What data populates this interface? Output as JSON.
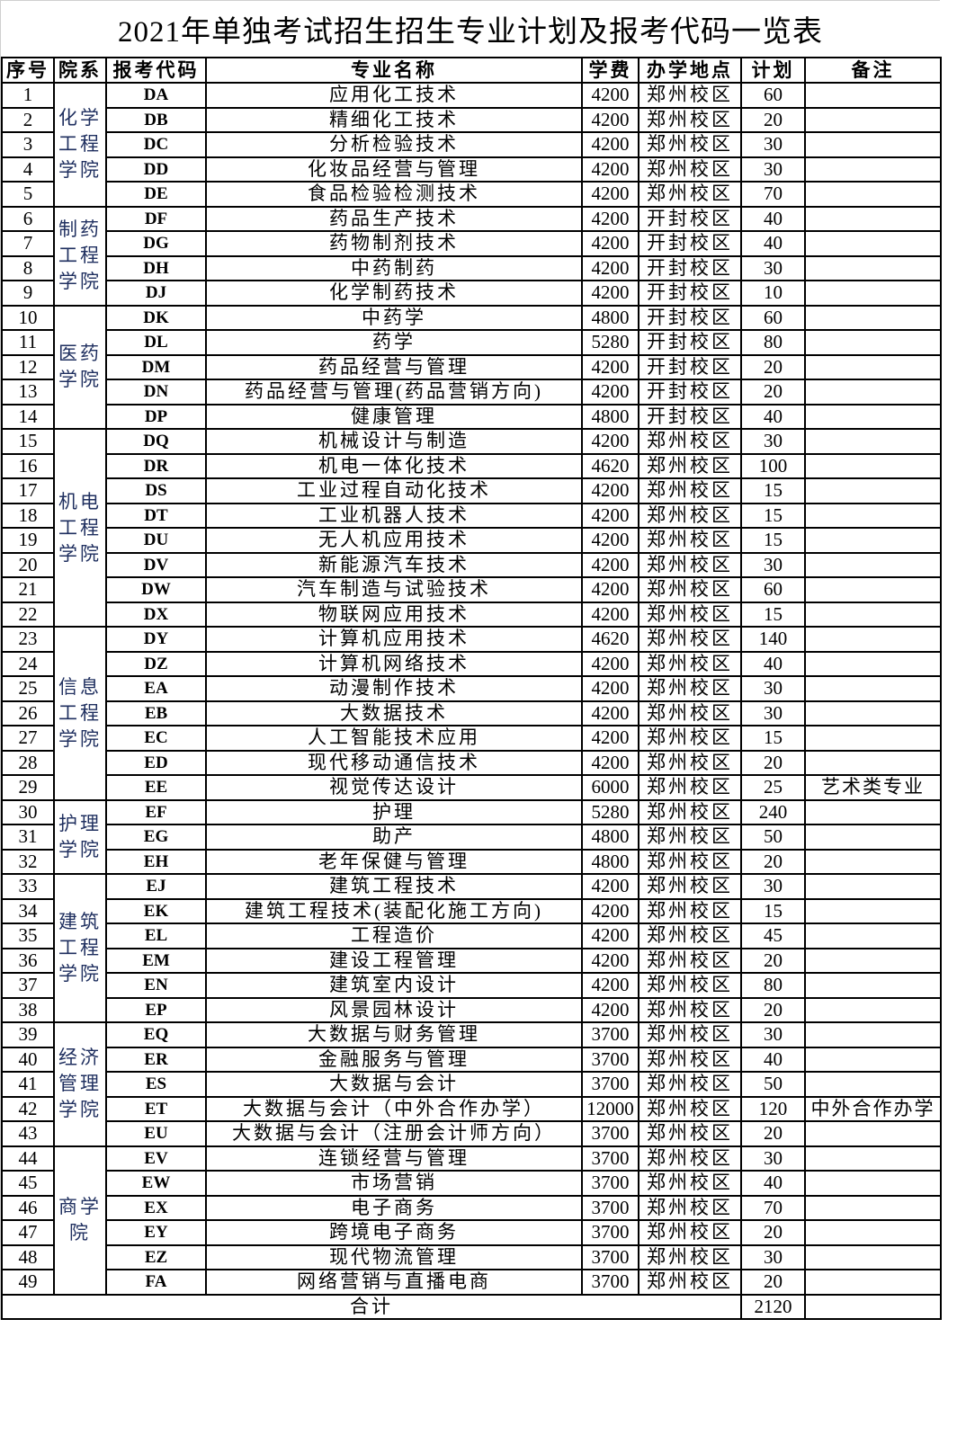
{
  "title": "2021年单独考试招生招生专业计划及报考代码一览表",
  "headers": [
    "序号",
    "院系",
    "报考代码",
    "专业名称",
    "学费",
    "办学地点",
    "计划",
    "备注"
  ],
  "departments": [
    {
      "name": "化学工程学院",
      "rows": 5
    },
    {
      "name": "制药工程学院",
      "rows": 4
    },
    {
      "name": "医药学院",
      "rows": 5
    },
    {
      "name": "机电工程学院",
      "rows": 8
    },
    {
      "name": "信息工程学院",
      "rows": 7
    },
    {
      "name": "护理学院",
      "rows": 3
    },
    {
      "name": "建筑工程学院",
      "rows": 6
    },
    {
      "name": "经济管理学院",
      "rows": 5
    },
    {
      "name": "商学院",
      "rows": 6
    }
  ],
  "rows": [
    [
      "1",
      "DA",
      "应用化工技术",
      "4200",
      "郑州校区",
      "60",
      ""
    ],
    [
      "2",
      "DB",
      "精细化工技术",
      "4200",
      "郑州校区",
      "20",
      ""
    ],
    [
      "3",
      "DC",
      "分析检验技术",
      "4200",
      "郑州校区",
      "30",
      ""
    ],
    [
      "4",
      "DD",
      "化妆品经营与管理",
      "4200",
      "郑州校区",
      "30",
      ""
    ],
    [
      "5",
      "DE",
      "食品检验检测技术",
      "4200",
      "郑州校区",
      "70",
      ""
    ],
    [
      "6",
      "DF",
      "药品生产技术",
      "4200",
      "开封校区",
      "40",
      ""
    ],
    [
      "7",
      "DG",
      "药物制剂技术",
      "4200",
      "开封校区",
      "40",
      ""
    ],
    [
      "8",
      "DH",
      "中药制药",
      "4200",
      "开封校区",
      "30",
      ""
    ],
    [
      "9",
      "DJ",
      "化学制药技术",
      "4200",
      "开封校区",
      "10",
      ""
    ],
    [
      "10",
      "DK",
      "中药学",
      "4800",
      "开封校区",
      "60",
      ""
    ],
    [
      "11",
      "DL",
      "药学",
      "5280",
      "开封校区",
      "80",
      ""
    ],
    [
      "12",
      "DM",
      "药品经营与管理",
      "4200",
      "开封校区",
      "20",
      ""
    ],
    [
      "13",
      "DN",
      "药品经营与管理(药品营销方向)",
      "4200",
      "开封校区",
      "20",
      ""
    ],
    [
      "14",
      "DP",
      "健康管理",
      "4800",
      "开封校区",
      "40",
      ""
    ],
    [
      "15",
      "DQ",
      "机械设计与制造",
      "4200",
      "郑州校区",
      "30",
      ""
    ],
    [
      "16",
      "DR",
      "机电一体化技术",
      "4620",
      "郑州校区",
      "100",
      ""
    ],
    [
      "17",
      "DS",
      "工业过程自动化技术",
      "4200",
      "郑州校区",
      "15",
      ""
    ],
    [
      "18",
      "DT",
      "工业机器人技术",
      "4200",
      "郑州校区",
      "15",
      ""
    ],
    [
      "19",
      "DU",
      "无人机应用技术",
      "4200",
      "郑州校区",
      "15",
      ""
    ],
    [
      "20",
      "DV",
      "新能源汽车技术",
      "4200",
      "郑州校区",
      "30",
      ""
    ],
    [
      "21",
      "DW",
      "汽车制造与试验技术",
      "4200",
      "郑州校区",
      "60",
      ""
    ],
    [
      "22",
      "DX",
      "物联网应用技术",
      "4200",
      "郑州校区",
      "15",
      ""
    ],
    [
      "23",
      "DY",
      "计算机应用技术",
      "4620",
      "郑州校区",
      "140",
      ""
    ],
    [
      "24",
      "DZ",
      "计算机网络技术",
      "4200",
      "郑州校区",
      "40",
      ""
    ],
    [
      "25",
      "EA",
      "动漫制作技术",
      "4200",
      "郑州校区",
      "30",
      ""
    ],
    [
      "26",
      "EB",
      "大数据技术",
      "4200",
      "郑州校区",
      "30",
      ""
    ],
    [
      "27",
      "EC",
      "人工智能技术应用",
      "4200",
      "郑州校区",
      "15",
      ""
    ],
    [
      "28",
      "ED",
      "现代移动通信技术",
      "4200",
      "郑州校区",
      "20",
      ""
    ],
    [
      "29",
      "EE",
      "视觉传达设计",
      "6000",
      "郑州校区",
      "25",
      "艺术类专业"
    ],
    [
      "30",
      "EF",
      "护理",
      "5280",
      "郑州校区",
      "240",
      ""
    ],
    [
      "31",
      "EG",
      "助产",
      "4800",
      "郑州校区",
      "50",
      ""
    ],
    [
      "32",
      "EH",
      "老年保健与管理",
      "4800",
      "郑州校区",
      "20",
      ""
    ],
    [
      "33",
      "EJ",
      "建筑工程技术",
      "4200",
      "郑州校区",
      "30",
      ""
    ],
    [
      "34",
      "EK",
      "建筑工程技术(装配化施工方向)",
      "4200",
      "郑州校区",
      "15",
      ""
    ],
    [
      "35",
      "EL",
      "工程造价",
      "4200",
      "郑州校区",
      "45",
      ""
    ],
    [
      "36",
      "EM",
      "建设工程管理",
      "4200",
      "郑州校区",
      "20",
      ""
    ],
    [
      "37",
      "EN",
      "建筑室内设计",
      "4200",
      "郑州校区",
      "80",
      ""
    ],
    [
      "38",
      "EP",
      "风景园林设计",
      "4200",
      "郑州校区",
      "20",
      ""
    ],
    [
      "39",
      "EQ",
      "大数据与财务管理",
      "3700",
      "郑州校区",
      "30",
      ""
    ],
    [
      "40",
      "ER",
      "金融服务与管理",
      "3700",
      "郑州校区",
      "40",
      ""
    ],
    [
      "41",
      "ES",
      "大数据与会计",
      "3700",
      "郑州校区",
      "50",
      ""
    ],
    [
      "42",
      "ET",
      "大数据与会计（中外合作办学）",
      "12000",
      "郑州校区",
      "120",
      "中外合作办学"
    ],
    [
      "43",
      "EU",
      "大数据与会计（注册会计师方向）",
      "3700",
      "郑州校区",
      "20",
      ""
    ],
    [
      "44",
      "EV",
      "连锁经营与管理",
      "3700",
      "郑州校区",
      "30",
      ""
    ],
    [
      "45",
      "EW",
      "市场营销",
      "3700",
      "郑州校区",
      "40",
      ""
    ],
    [
      "46",
      "EX",
      "电子商务",
      "3700",
      "郑州校区",
      "70",
      ""
    ],
    [
      "47",
      "EY",
      "跨境电子商务",
      "3700",
      "郑州校区",
      "20",
      ""
    ],
    [
      "48",
      "EZ",
      "现代物流管理",
      "3700",
      "郑州校区",
      "30",
      ""
    ],
    [
      "49",
      "FA",
      "网络营销与直播电商",
      "3700",
      "郑州校区",
      "20",
      ""
    ]
  ],
  "total": {
    "label": "合计",
    "value": "2120"
  }
}
